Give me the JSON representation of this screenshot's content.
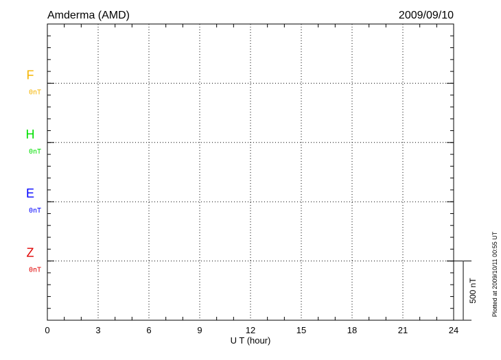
{
  "chart_data": {
    "type": "line",
    "title": "Amderma (AMD)",
    "date": "2009/09/10",
    "xlabel": "U T (hour)",
    "xlim": [
      0,
      24
    ],
    "xticks": [
      "0",
      "3",
      "6",
      "9",
      "12",
      "15",
      "18",
      "21",
      "24"
    ],
    "grid": true,
    "series": [
      {
        "name": "F",
        "offset_label": "0nT",
        "color": "#f5b400",
        "values": []
      },
      {
        "name": "H",
        "offset_label": "0nT",
        "color": "#00e000",
        "values": []
      },
      {
        "name": "E",
        "offset_label": "0nT",
        "color": "#0000ff",
        "values": []
      },
      {
        "name": "Z",
        "offset_label": "0nT",
        "color": "#e00000",
        "values": []
      }
    ],
    "scale_bar_label": "500 nT",
    "plotted_note": "Plotted at 2009/10/11 00:55 UT"
  }
}
